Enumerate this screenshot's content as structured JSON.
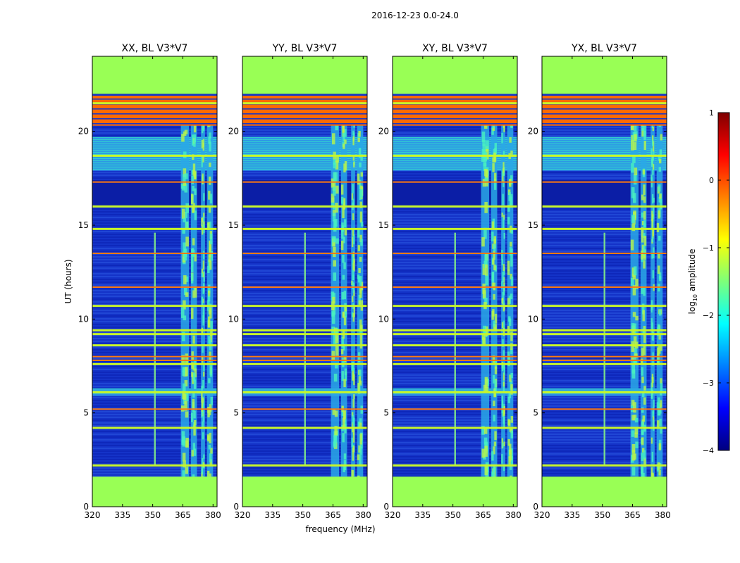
{
  "figure": {
    "suptitle": "2016-12-23 0.0-24.0",
    "ylabel": "UT (hours)",
    "xlabel": "frequency (MHz)",
    "colorbar_label": "log10 amplitude",
    "colorbar_label_main": "log",
    "colorbar_label_sub": "10",
    "colorbar_label_rest": " amplitude",
    "colormap": [
      "#00007f",
      "#0000ff",
      "#0080ff",
      "#00ffff",
      "#7dff7a",
      "#ffff00",
      "#ff8000",
      "#ff0000",
      "#7f0000"
    ],
    "colors": {
      "flag_fill": "#99ff55",
      "background_blue": "#1433c8",
      "band_yellow": "#c8f52a",
      "band_orange": "#ff6a00",
      "band_cyan": "#38e8c8"
    }
  },
  "chart_data": [
    {
      "type": "heatmap",
      "title": "XX, BL V3*V7",
      "x_ticks": [
        "320",
        "335",
        "350",
        "365",
        "380"
      ],
      "y_ticks": [
        "0",
        "5",
        "10",
        "15",
        "20"
      ],
      "xlim": [
        320,
        382
      ],
      "ylim": [
        0,
        24
      ]
    },
    {
      "type": "heatmap",
      "title": "YY, BL V3*V7",
      "x_ticks": [
        "320",
        "335",
        "350",
        "365",
        "380"
      ],
      "y_ticks": [
        "0",
        "5",
        "10",
        "15",
        "20"
      ],
      "xlim": [
        320,
        382
      ],
      "ylim": [
        0,
        24
      ]
    },
    {
      "type": "heatmap",
      "title": "XY, BL V3*V7",
      "x_ticks": [
        "320",
        "335",
        "350",
        "365",
        "380"
      ],
      "y_ticks": [
        "0",
        "5",
        "10",
        "15",
        "20"
      ],
      "xlim": [
        320,
        382
      ],
      "ylim": [
        0,
        24
      ]
    },
    {
      "type": "heatmap",
      "title": "YX, BL V3*V7",
      "x_ticks": [
        "320",
        "335",
        "350",
        "365",
        "380"
      ],
      "y_ticks": [
        "0",
        "5",
        "10",
        "15",
        "20"
      ],
      "xlim": [
        320,
        382
      ],
      "ylim": [
        0,
        24
      ]
    }
  ],
  "spectrogram_features": {
    "flagged_hours": [
      [
        0,
        1.6
      ],
      [
        22.0,
        24.0
      ]
    ],
    "bright_channels_mhz": [
      [
        364,
        368
      ],
      [
        369,
        372
      ],
      [
        374,
        376
      ],
      [
        377,
        380
      ]
    ],
    "rfi_channel_mhz": 351,
    "orange_band_hours": [
      [
        20.3,
        21.9
      ]
    ],
    "cyan_band_hours": [
      [
        17.9,
        19.7
      ],
      [
        5.9,
        6.3
      ]
    ],
    "dark_band_hours": [
      [
        16.0,
        17.4
      ]
    ],
    "yellow_line_hours": [
      2.2,
      4.2,
      6.1,
      7.6,
      8.6,
      9.2,
      9.4,
      10.7,
      14.8,
      16.0,
      18.7,
      21.5
    ],
    "orange_line_hours": [
      5.2,
      7.8,
      8.0,
      11.7,
      13.5,
      17.3
    ]
  },
  "colorbar": {
    "vmin": -4,
    "vmax": 1,
    "ticks": [
      "1",
      "0",
      "−1",
      "−2",
      "−3",
      "−4"
    ],
    "tick_values": [
      1,
      0,
      -1,
      -2,
      -3,
      -4
    ]
  }
}
